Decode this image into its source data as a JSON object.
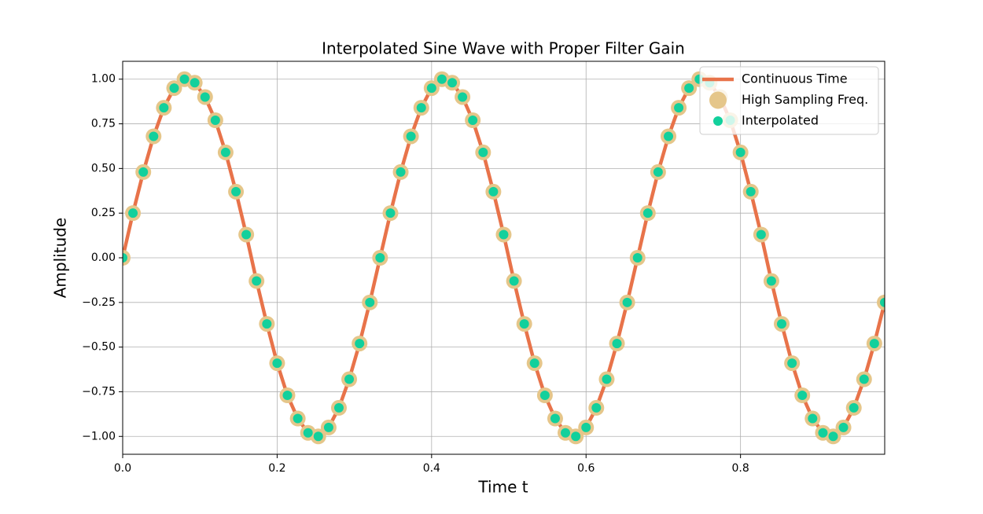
{
  "chart_data": {
    "type": "line",
    "title": "Interpolated Sine Wave with Proper Filter Gain",
    "xlabel": "Time t",
    "ylabel": "Amplitude",
    "x": [
      0,
      0.0133,
      0.0267,
      0.04,
      0.0533,
      0.0667,
      0.08,
      0.0933,
      0.1067,
      0.12,
      0.1333,
      0.1467,
      0.16,
      0.1733,
      0.1867,
      0.2,
      0.2133,
      0.2267,
      0.24,
      0.2533,
      0.2667,
      0.28,
      0.2933,
      0.3067,
      0.32,
      0.3333,
      0.3467,
      0.36,
      0.3733,
      0.3867,
      0.4,
      0.4133,
      0.4267,
      0.44,
      0.4533,
      0.4667,
      0.48,
      0.4933,
      0.5067,
      0.52,
      0.5333,
      0.5467,
      0.56,
      0.5733,
      0.5867,
      0.6,
      0.6133,
      0.6267,
      0.64,
      0.6533,
      0.6667,
      0.68,
      0.6933,
      0.7067,
      0.72,
      0.7333,
      0.7467,
      0.76,
      0.7733,
      0.7867,
      0.8,
      0.8133,
      0.8267,
      0.84,
      0.8533,
      0.8667,
      0.88,
      0.8933,
      0.9067,
      0.92,
      0.9333,
      0.9467,
      0.96,
      0.9733,
      0.9867
    ],
    "series": [
      {
        "name": "Continuous Time",
        "color": "#e8734a",
        "style": "line",
        "values": [
          0,
          0.25,
          0.48,
          0.68,
          0.84,
          0.95,
          1.0,
          0.98,
          0.9,
          0.77,
          0.59,
          0.37,
          0.13,
          -0.13,
          -0.37,
          -0.59,
          -0.77,
          -0.9,
          -0.98,
          -1.0,
          -0.95,
          -0.84,
          -0.68,
          -0.48,
          -0.25,
          0,
          0.25,
          0.48,
          0.68,
          0.84,
          0.95,
          1.0,
          0.98,
          0.9,
          0.77,
          0.59,
          0.37,
          0.13,
          -0.13,
          -0.37,
          -0.59,
          -0.77,
          -0.9,
          -0.98,
          -1.0,
          -0.95,
          -0.84,
          -0.68,
          -0.48,
          -0.25,
          0,
          0.25,
          0.48,
          0.68,
          0.84,
          0.95,
          1.0,
          0.98,
          0.9,
          0.77,
          0.59,
          0.37,
          0.13,
          -0.13,
          -0.37,
          -0.59,
          -0.77,
          -0.9,
          -0.98,
          -1.0,
          -0.95,
          -0.84,
          -0.68,
          -0.48,
          -0.25
        ]
      },
      {
        "name": "High Sampling Freq.",
        "color": "#e5c68a",
        "style": "big-dot",
        "values": [
          0,
          0.25,
          0.48,
          0.68,
          0.84,
          0.95,
          1.0,
          0.98,
          0.9,
          0.77,
          0.59,
          0.37,
          0.13,
          -0.13,
          -0.37,
          -0.59,
          -0.77,
          -0.9,
          -0.98,
          -1.0,
          -0.95,
          -0.84,
          -0.68,
          -0.48,
          -0.25,
          0,
          0.25,
          0.48,
          0.68,
          0.84,
          0.95,
          1.0,
          0.98,
          0.9,
          0.77,
          0.59,
          0.37,
          0.13,
          -0.13,
          -0.37,
          -0.59,
          -0.77,
          -0.9,
          -0.98,
          -1.0,
          -0.95,
          -0.84,
          -0.68,
          -0.48,
          -0.25,
          0,
          0.25,
          0.48,
          0.68,
          0.84,
          0.95,
          1.0,
          0.98,
          0.9,
          0.77,
          0.59,
          0.37,
          0.13,
          -0.13,
          -0.37,
          -0.59,
          -0.77,
          -0.9,
          -0.98,
          -1.0,
          -0.95,
          -0.84,
          -0.68,
          -0.48,
          -0.25
        ]
      },
      {
        "name": "Interpolated",
        "color": "#12d09c",
        "style": "dot",
        "values": [
          0,
          0.25,
          0.48,
          0.68,
          0.84,
          0.95,
          1.0,
          0.98,
          0.9,
          0.77,
          0.59,
          0.37,
          0.13,
          -0.13,
          -0.37,
          -0.59,
          -0.77,
          -0.9,
          -0.98,
          -1.0,
          -0.95,
          -0.84,
          -0.68,
          -0.48,
          -0.25,
          0,
          0.25,
          0.48,
          0.68,
          0.84,
          0.95,
          1.0,
          0.98,
          0.9,
          0.77,
          0.59,
          0.37,
          0.13,
          -0.13,
          -0.37,
          -0.59,
          -0.77,
          -0.9,
          -0.98,
          -1.0,
          -0.95,
          -0.84,
          -0.68,
          -0.48,
          -0.25,
          0,
          0.25,
          0.48,
          0.68,
          0.84,
          0.95,
          1.0,
          0.98,
          0.9,
          0.77,
          0.59,
          0.37,
          0.13,
          -0.13,
          -0.37,
          -0.59,
          -0.77,
          -0.9,
          -0.98,
          -1.0,
          -0.95,
          -0.84,
          -0.68,
          -0.48,
          -0.25
        ]
      }
    ],
    "xlim": [
      0,
      0.9867
    ],
    "ylim": [
      -1.1,
      1.1
    ],
    "xticks": [
      {
        "value": 0,
        "label": "0.0"
      },
      {
        "value": 0.2,
        "label": "0.2"
      },
      {
        "value": 0.4,
        "label": "0.4"
      },
      {
        "value": 0.6,
        "label": "0.6"
      },
      {
        "value": 0.8,
        "label": "0.8"
      }
    ],
    "yticks": [
      {
        "value": -1,
        "label": "−1.00"
      },
      {
        "value": -0.75,
        "label": "−0.75"
      },
      {
        "value": -0.5,
        "label": "−0.50"
      },
      {
        "value": -0.25,
        "label": "−0.25"
      },
      {
        "value": 0,
        "label": "0.00"
      },
      {
        "value": 0.25,
        "label": "0.25"
      },
      {
        "value": 0.5,
        "label": "0.50"
      },
      {
        "value": 0.75,
        "label": "0.75"
      },
      {
        "value": 1,
        "label": "1.00"
      }
    ],
    "grid": true,
    "legend": "upper-right"
  }
}
